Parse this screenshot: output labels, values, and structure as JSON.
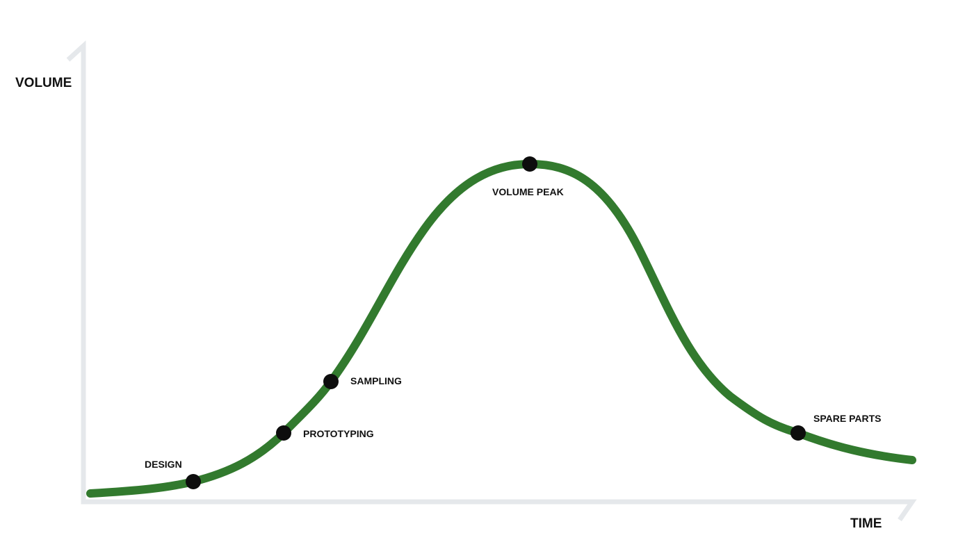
{
  "axes": {
    "y_label": "VOLUME",
    "x_label": "TIME"
  },
  "stages": [
    {
      "label": "DESIGN"
    },
    {
      "label": "PROTOTYPING"
    },
    {
      "label": "SAMPLING"
    },
    {
      "label": "VOLUME PEAK"
    },
    {
      "label": "SPARE PARTS"
    }
  ]
}
